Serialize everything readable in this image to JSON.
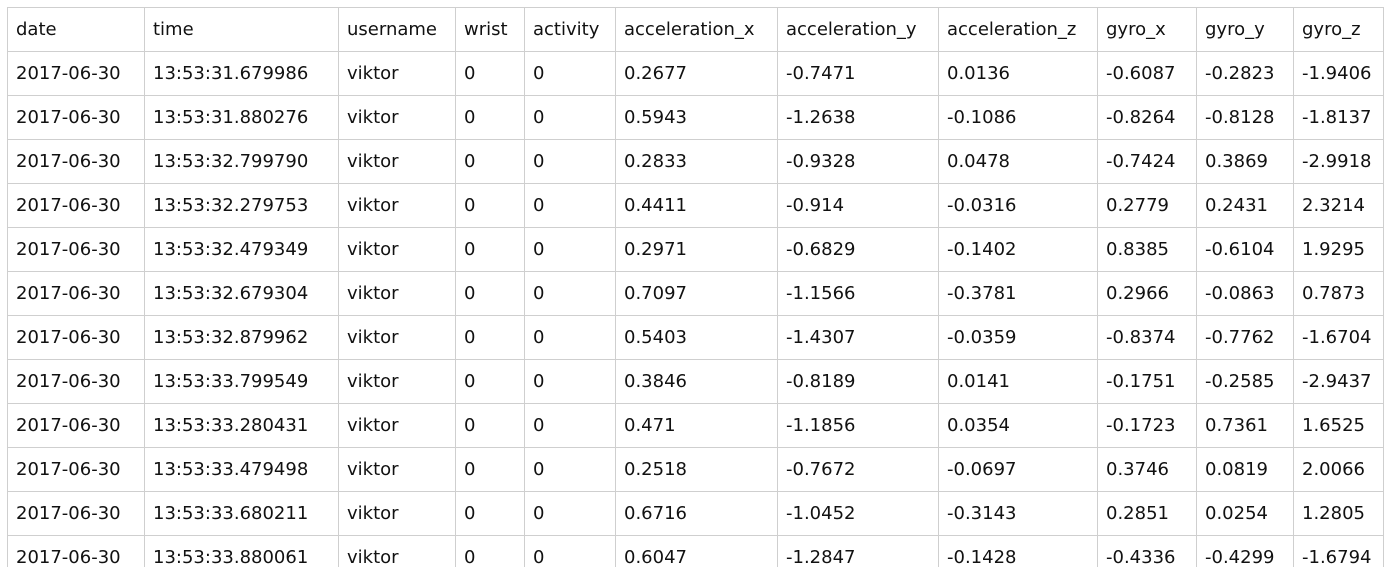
{
  "table": {
    "columns": [
      "date",
      "time",
      "username",
      "wrist",
      "activity",
      "acceleration_x",
      "acceleration_y",
      "acceleration_z",
      "gyro_x",
      "gyro_y",
      "gyro_z"
    ],
    "rows": [
      [
        "2017-06-30",
        "13:53:31.679986",
        "viktor",
        "0",
        "0",
        "0.2677",
        "-0.7471",
        "0.0136",
        "-0.6087",
        "-0.2823",
        "-1.9406"
      ],
      [
        "2017-06-30",
        "13:53:31.880276",
        "viktor",
        "0",
        "0",
        "0.5943",
        "-1.2638",
        "-0.1086",
        "-0.8264",
        "-0.8128",
        "-1.8137"
      ],
      [
        "2017-06-30",
        "13:53:32.799790",
        "viktor",
        "0",
        "0",
        "0.2833",
        "-0.9328",
        "0.0478",
        "-0.7424",
        "0.3869",
        "-2.9918"
      ],
      [
        "2017-06-30",
        "13:53:32.279753",
        "viktor",
        "0",
        "0",
        "0.4411",
        "-0.914",
        "-0.0316",
        "0.2779",
        "0.2431",
        "2.3214"
      ],
      [
        "2017-06-30",
        "13:53:32.479349",
        "viktor",
        "0",
        "0",
        "0.2971",
        "-0.6829",
        "-0.1402",
        "0.8385",
        "-0.6104",
        "1.9295"
      ],
      [
        "2017-06-30",
        "13:53:32.679304",
        "viktor",
        "0",
        "0",
        "0.7097",
        "-1.1566",
        "-0.3781",
        "0.2966",
        "-0.0863",
        "0.7873"
      ],
      [
        "2017-06-30",
        "13:53:32.879962",
        "viktor",
        "0",
        "0",
        "0.5403",
        "-1.4307",
        "-0.0359",
        "-0.8374",
        "-0.7762",
        "-1.6704"
      ],
      [
        "2017-06-30",
        "13:53:33.799549",
        "viktor",
        "0",
        "0",
        "0.3846",
        "-0.8189",
        "0.0141",
        "-0.1751",
        "-0.2585",
        "-2.9437"
      ],
      [
        "2017-06-30",
        "13:53:33.280431",
        "viktor",
        "0",
        "0",
        "0.471",
        "-1.1856",
        "0.0354",
        "-0.1723",
        "0.7361",
        "1.6525"
      ],
      [
        "2017-06-30",
        "13:53:33.479498",
        "viktor",
        "0",
        "0",
        "0.2518",
        "-0.7672",
        "-0.0697",
        "0.3746",
        "0.0819",
        "2.0066"
      ],
      [
        "2017-06-30",
        "13:53:33.680211",
        "viktor",
        "0",
        "0",
        "0.6716",
        "-1.0452",
        "-0.3143",
        "0.2851",
        "0.0254",
        "1.2805"
      ],
      [
        "2017-06-30",
        "13:53:33.880061",
        "viktor",
        "0",
        "0",
        "0.6047",
        "-1.2847",
        "-0.1428",
        "-0.4336",
        "-0.4299",
        "-1.6794"
      ]
    ]
  }
}
